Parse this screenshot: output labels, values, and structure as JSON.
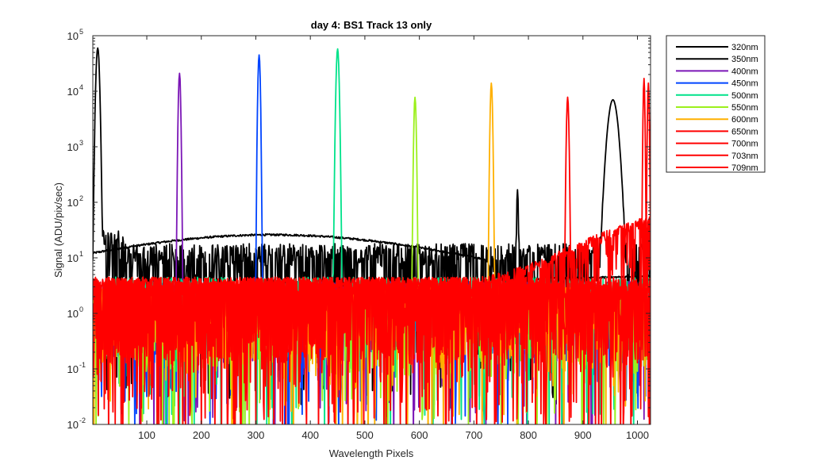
{
  "chart_data": {
    "type": "line",
    "title": "day 4: BS1   Track 13 only",
    "xlabel": "Wavelength Pixels",
    "ylabel": "Signal (ADU/pix/sec)",
    "xlim": [
      1,
      1024
    ],
    "ylim": [
      0.01,
      100000
    ],
    "yscale": "log",
    "grid": false,
    "legend_position": "outside-top-right",
    "x_ticks": [
      100,
      200,
      300,
      400,
      500,
      600,
      700,
      800,
      900,
      1000
    ],
    "y_ticks": [
      {
        "value": 0.01,
        "base": "10",
        "exp": "-2"
      },
      {
        "value": 0.1,
        "base": "10",
        "exp": "-1"
      },
      {
        "value": 1,
        "base": "10",
        "exp": "0"
      },
      {
        "value": 10,
        "base": "10",
        "exp": "1"
      },
      {
        "value": 100,
        "base": "10",
        "exp": "2"
      },
      {
        "value": 1000,
        "base": "10",
        "exp": "3"
      },
      {
        "value": 10000,
        "base": "10",
        "exp": "4"
      },
      {
        "value": 100000,
        "base": "10",
        "exp": "5"
      }
    ],
    "series": [
      {
        "name": "320nm",
        "color": "#000000",
        "peaks": [
          {
            "x": 10,
            "y": 60000,
            "w": 3
          },
          {
            "x": 780,
            "y": 160,
            "w": 1.5
          },
          {
            "x": 955,
            "y": 7000,
            "w": 9
          }
        ],
        "baseline": 12,
        "noise": "high"
      },
      {
        "name": "350nm",
        "color": "#000000",
        "peaks": [],
        "baseline": 20,
        "noise": "smooth"
      },
      {
        "name": "400nm",
        "color": "#7b16b6",
        "peaks": [
          {
            "x": 160,
            "y": 21000,
            "w": 2
          }
        ],
        "baseline": 2.5,
        "noise": "high"
      },
      {
        "name": "450nm",
        "color": "#0044ff",
        "peaks": [
          {
            "x": 306,
            "y": 45000,
            "w": 2
          }
        ],
        "baseline": 2.5,
        "noise": "high"
      },
      {
        "name": "500nm",
        "color": "#00e28a",
        "peaks": [
          {
            "x": 450,
            "y": 58000,
            "w": 2.5
          }
        ],
        "baseline": 3,
        "noise": "high"
      },
      {
        "name": "550nm",
        "color": "#9cf01c",
        "peaks": [
          {
            "x": 592,
            "y": 7800,
            "w": 2
          }
        ],
        "baseline": 1.5,
        "noise": "high"
      },
      {
        "name": "600nm",
        "color": "#ffb000",
        "peaks": [
          {
            "x": 732,
            "y": 14000,
            "w": 2
          }
        ],
        "baseline": 2,
        "noise": "high"
      },
      {
        "name": "650nm",
        "color": "#ff0000",
        "peaks": [
          {
            "x": 872,
            "y": 7800,
            "w": 2
          }
        ],
        "baseline": 2.5,
        "noise": "high"
      },
      {
        "name": "700nm",
        "color": "#ff0000",
        "peaks": [
          {
            "x": 1012,
            "y": 17000,
            "w": 1.5
          }
        ],
        "baseline": 3,
        "noise": "high"
      },
      {
        "name": "703nm",
        "color": "#ff0000",
        "peaks": [
          {
            "x": 1020,
            "y": 14000,
            "w": 1.5
          }
        ],
        "baseline": 3,
        "noise": "high"
      },
      {
        "name": "709nm",
        "color": "#ff0000",
        "peaks": [],
        "baseline": 4,
        "noise": "rise"
      }
    ]
  }
}
